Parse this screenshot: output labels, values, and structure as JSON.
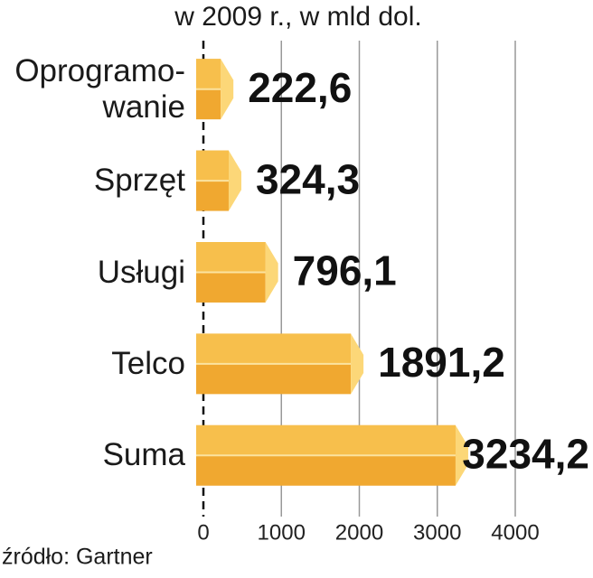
{
  "chart_data": {
    "type": "bar",
    "orientation": "horizontal",
    "title": "w 2009 r., w mld dol.",
    "categories": [
      "Oprogramo-\nwanie",
      "Sprzęt",
      "Usługi",
      "Telco",
      "Suma"
    ],
    "values": [
      222.6,
      324.3,
      796.1,
      1891.2,
      3234.2
    ],
    "value_labels": [
      "222,6",
      "324,3",
      "796,1",
      "1891,2",
      "3234,2"
    ],
    "color": "#f0a830",
    "xlim": [
      0,
      4000
    ],
    "xticks": [
      0,
      1000,
      2000,
      3000,
      4000
    ],
    "grid": true,
    "source": "źródło: Gartner"
  }
}
